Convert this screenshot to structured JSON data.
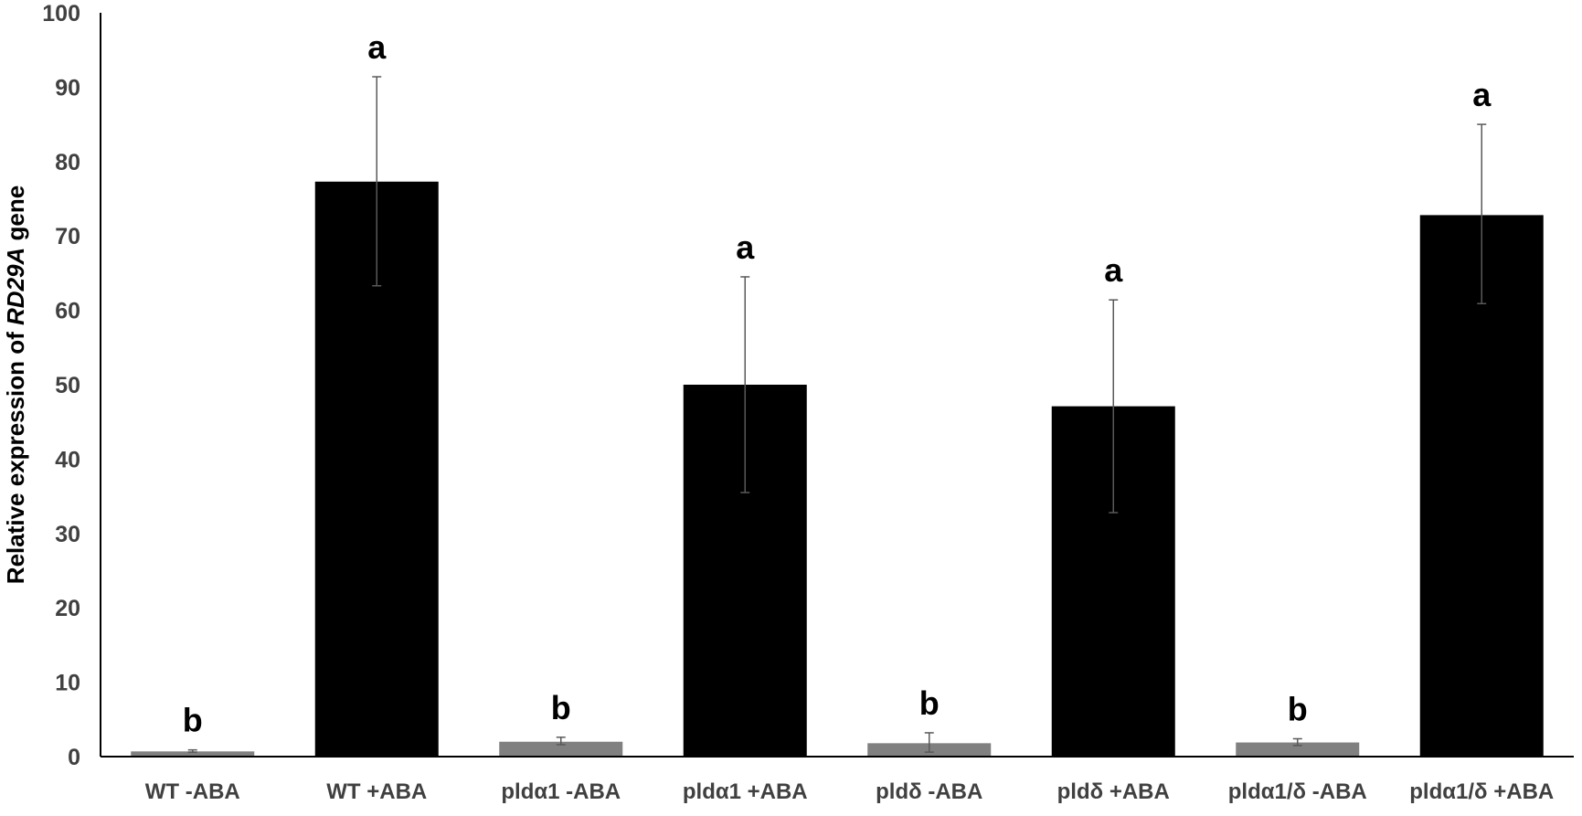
{
  "chart_data": {
    "type": "bar",
    "title": "",
    "xlabel": "",
    "ylabel": {
      "prefix": "Relative expression of ",
      "gene": "RD29A",
      "suffix": " gene"
    },
    "ylim": [
      0,
      100
    ],
    "yticks": [
      0,
      10,
      20,
      30,
      40,
      50,
      60,
      70,
      80,
      90,
      100
    ],
    "grid": false,
    "legend": "none",
    "categories": [
      "WT -ABA",
      "WT +ABA",
      "pldα1 -ABA",
      "pldα1 +ABA",
      "pldδ -ABA",
      "pldδ +ABA",
      "pldα1/δ -ABA",
      "pldα1/δ +ABA"
    ],
    "values": [
      0.7,
      77.3,
      2.0,
      50.0,
      1.8,
      47.1,
      1.9,
      72.8
    ],
    "error_low": [
      0.6,
      63.3,
      1.6,
      35.5,
      0.6,
      32.8,
      1.5,
      60.9
    ],
    "error_high": [
      0.9,
      91.4,
      2.6,
      64.5,
      3.2,
      61.4,
      2.4,
      85.0
    ],
    "significance": [
      "b",
      "a",
      "b",
      "a",
      "b",
      "a",
      "b",
      "a"
    ],
    "colors": {
      "minus_aba": "#808080",
      "plus_aba": "#000000",
      "axis": "#000000",
      "tick_text": "#404040",
      "error_bar": "#595959"
    }
  }
}
